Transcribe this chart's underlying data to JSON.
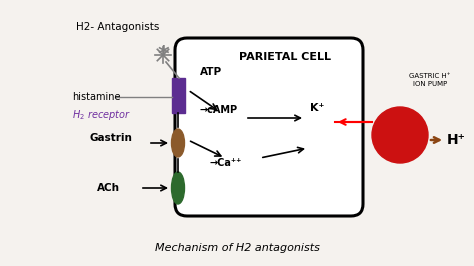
{
  "bg_color": "#f5f2ee",
  "title": "Mechanism of H2 antagonists",
  "parietal_cell_label": "PARIETAL CELL",
  "h2_antagonists_label": "H2- Antagonists",
  "histamine_label": "histamine",
  "atp_label": "ATP",
  "camp_label": "→cAMP",
  "kplus_label": "K⁺",
  "caplus_label": "→Ca⁺⁺",
  "hplus_label": "H⁺",
  "gastric_pump_label": "GASTRIC H⁺\nION PUMP",
  "gastrin_label": "Gastrin",
  "ach_label": "ACh",
  "purple_color": "#5c2d91",
  "brown_color": "#8B5A2B",
  "green_color": "#2d6a2d",
  "red_color": "#cc1111",
  "black": "#000000",
  "gray": "#888888",
  "purple_text": "#7030a0"
}
